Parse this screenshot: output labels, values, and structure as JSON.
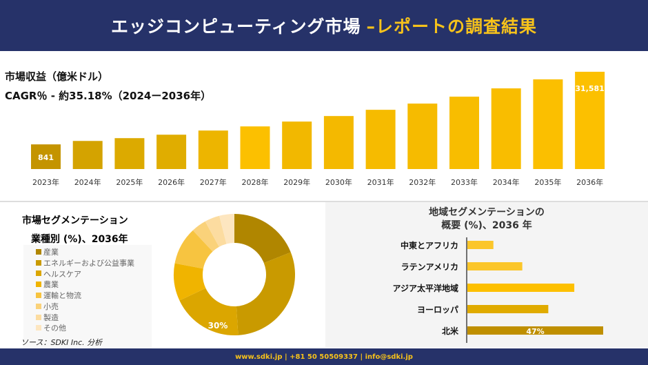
{
  "header": {
    "title": "エッジコンピューティング市場",
    "title_accent": "–レポートの調査結果"
  },
  "colors": {
    "navy": "#263269",
    "accent": "#f6c21b",
    "gold": "#d4a300"
  },
  "chart_data": [
    {
      "type": "bar",
      "title": "市場収益（億米ドル）",
      "subtitle": "CAGR％ - 約35.18%（2024ー2036年）",
      "categories": [
        "2023年",
        "2024年",
        "2025年",
        "2026年",
        "2027年",
        "2028年",
        "2029年",
        "2030年",
        "2031年",
        "2032年",
        "2033年",
        "2034年",
        "2035年",
        "2036年"
      ],
      "values": [
        841,
        2300,
        3480,
        4940,
        6700,
        8450,
        10500,
        12840,
        15480,
        18110,
        21040,
        24550,
        28360,
        31581
      ],
      "data_labels": {
        "0": "841",
        "13": "31,581"
      }
    },
    {
      "type": "pie",
      "title": "市場セグメンテーション",
      "subtitle": "業種別 (%)、2036年",
      "categories": [
        "産業",
        "エネルギーおよび公益事業",
        "ヘルスケア",
        "農業",
        "運輸と物流",
        "小売",
        "製造",
        "その他"
      ],
      "values": [
        19,
        30,
        19,
        10,
        10,
        4,
        4,
        4
      ],
      "colors": [
        "#b08600",
        "#c99a00",
        "#dba600",
        "#f0b400",
        "#f7c440",
        "#fad27a",
        "#fcdca0",
        "#fde6c0"
      ],
      "data_label": "30%",
      "legend": "left"
    },
    {
      "type": "bar",
      "orientation": "horizontal",
      "title": "地域セグメンテーションの",
      "subtitle": "概要 (%)、2036 年",
      "categories": [
        "中東とアフリカ",
        "ラテンアメリカ",
        "アジア太平洋地域",
        "ヨーロッパ",
        "北米"
      ],
      "values": [
        9,
        19,
        37,
        28,
        47
      ],
      "colors": [
        "#fbc62a",
        "#fbc62a",
        "#fdc000",
        "#e0ab00",
        "#bf8f00"
      ],
      "data_label": "47%"
    }
  ],
  "source": "ソース：SDKI Inc. 分析",
  "footer": "www.sdki.jp | +81 50 50509337 | info@sdki.jp"
}
